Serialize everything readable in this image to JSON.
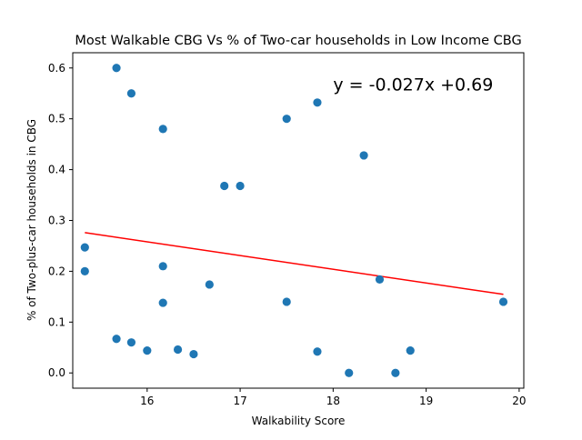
{
  "chart_data": {
    "type": "scatter",
    "title": "Most Walkable CBG Vs % of Two-car households in Low Income CBG",
    "xlabel": "Walkability Score",
    "ylabel": "% of Two-plus-car households in CBG",
    "xlim": [
      15.2,
      20.05
    ],
    "ylim": [
      -0.03,
      0.63
    ],
    "xticks": [
      16,
      17,
      18,
      19,
      20
    ],
    "yticks": [
      0.0,
      0.1,
      0.2,
      0.3,
      0.4,
      0.5,
      0.6
    ],
    "xtick_labels": [
      "16",
      "17",
      "18",
      "19",
      "20"
    ],
    "ytick_labels": [
      "0.0",
      "0.1",
      "0.2",
      "0.3",
      "0.4",
      "0.5",
      "0.6"
    ],
    "grid": false,
    "colors": {
      "points": "#1f77b4",
      "trendline": "#ff0000",
      "annotation": "#ff0000"
    },
    "series": [
      {
        "x": [
          15.33,
          15.33,
          15.67,
          15.67,
          15.83,
          15.83,
          16.0,
          16.17,
          16.17,
          16.17,
          16.33,
          16.5,
          16.67,
          16.83,
          17.0,
          17.5,
          17.5,
          17.83,
          17.83,
          18.17,
          18.33,
          18.5,
          18.67,
          18.83,
          19.83
        ],
        "y": [
          0.247,
          0.2,
          0.6,
          0.067,
          0.55,
          0.06,
          0.044,
          0.48,
          0.21,
          0.138,
          0.046,
          0.037,
          0.174,
          0.368,
          0.368,
          0.5,
          0.14,
          0.532,
          0.042,
          0.0,
          0.428,
          0.184,
          0.0,
          0.044,
          0.14
        ]
      }
    ],
    "trendline": {
      "slope": -0.027,
      "intercept": 0.69,
      "x_range": [
        15.33,
        19.83
      ]
    },
    "annotations": [
      {
        "text": "y = -0.027x +0.69",
        "x": 18.0,
        "y": 0.556
      }
    ]
  }
}
